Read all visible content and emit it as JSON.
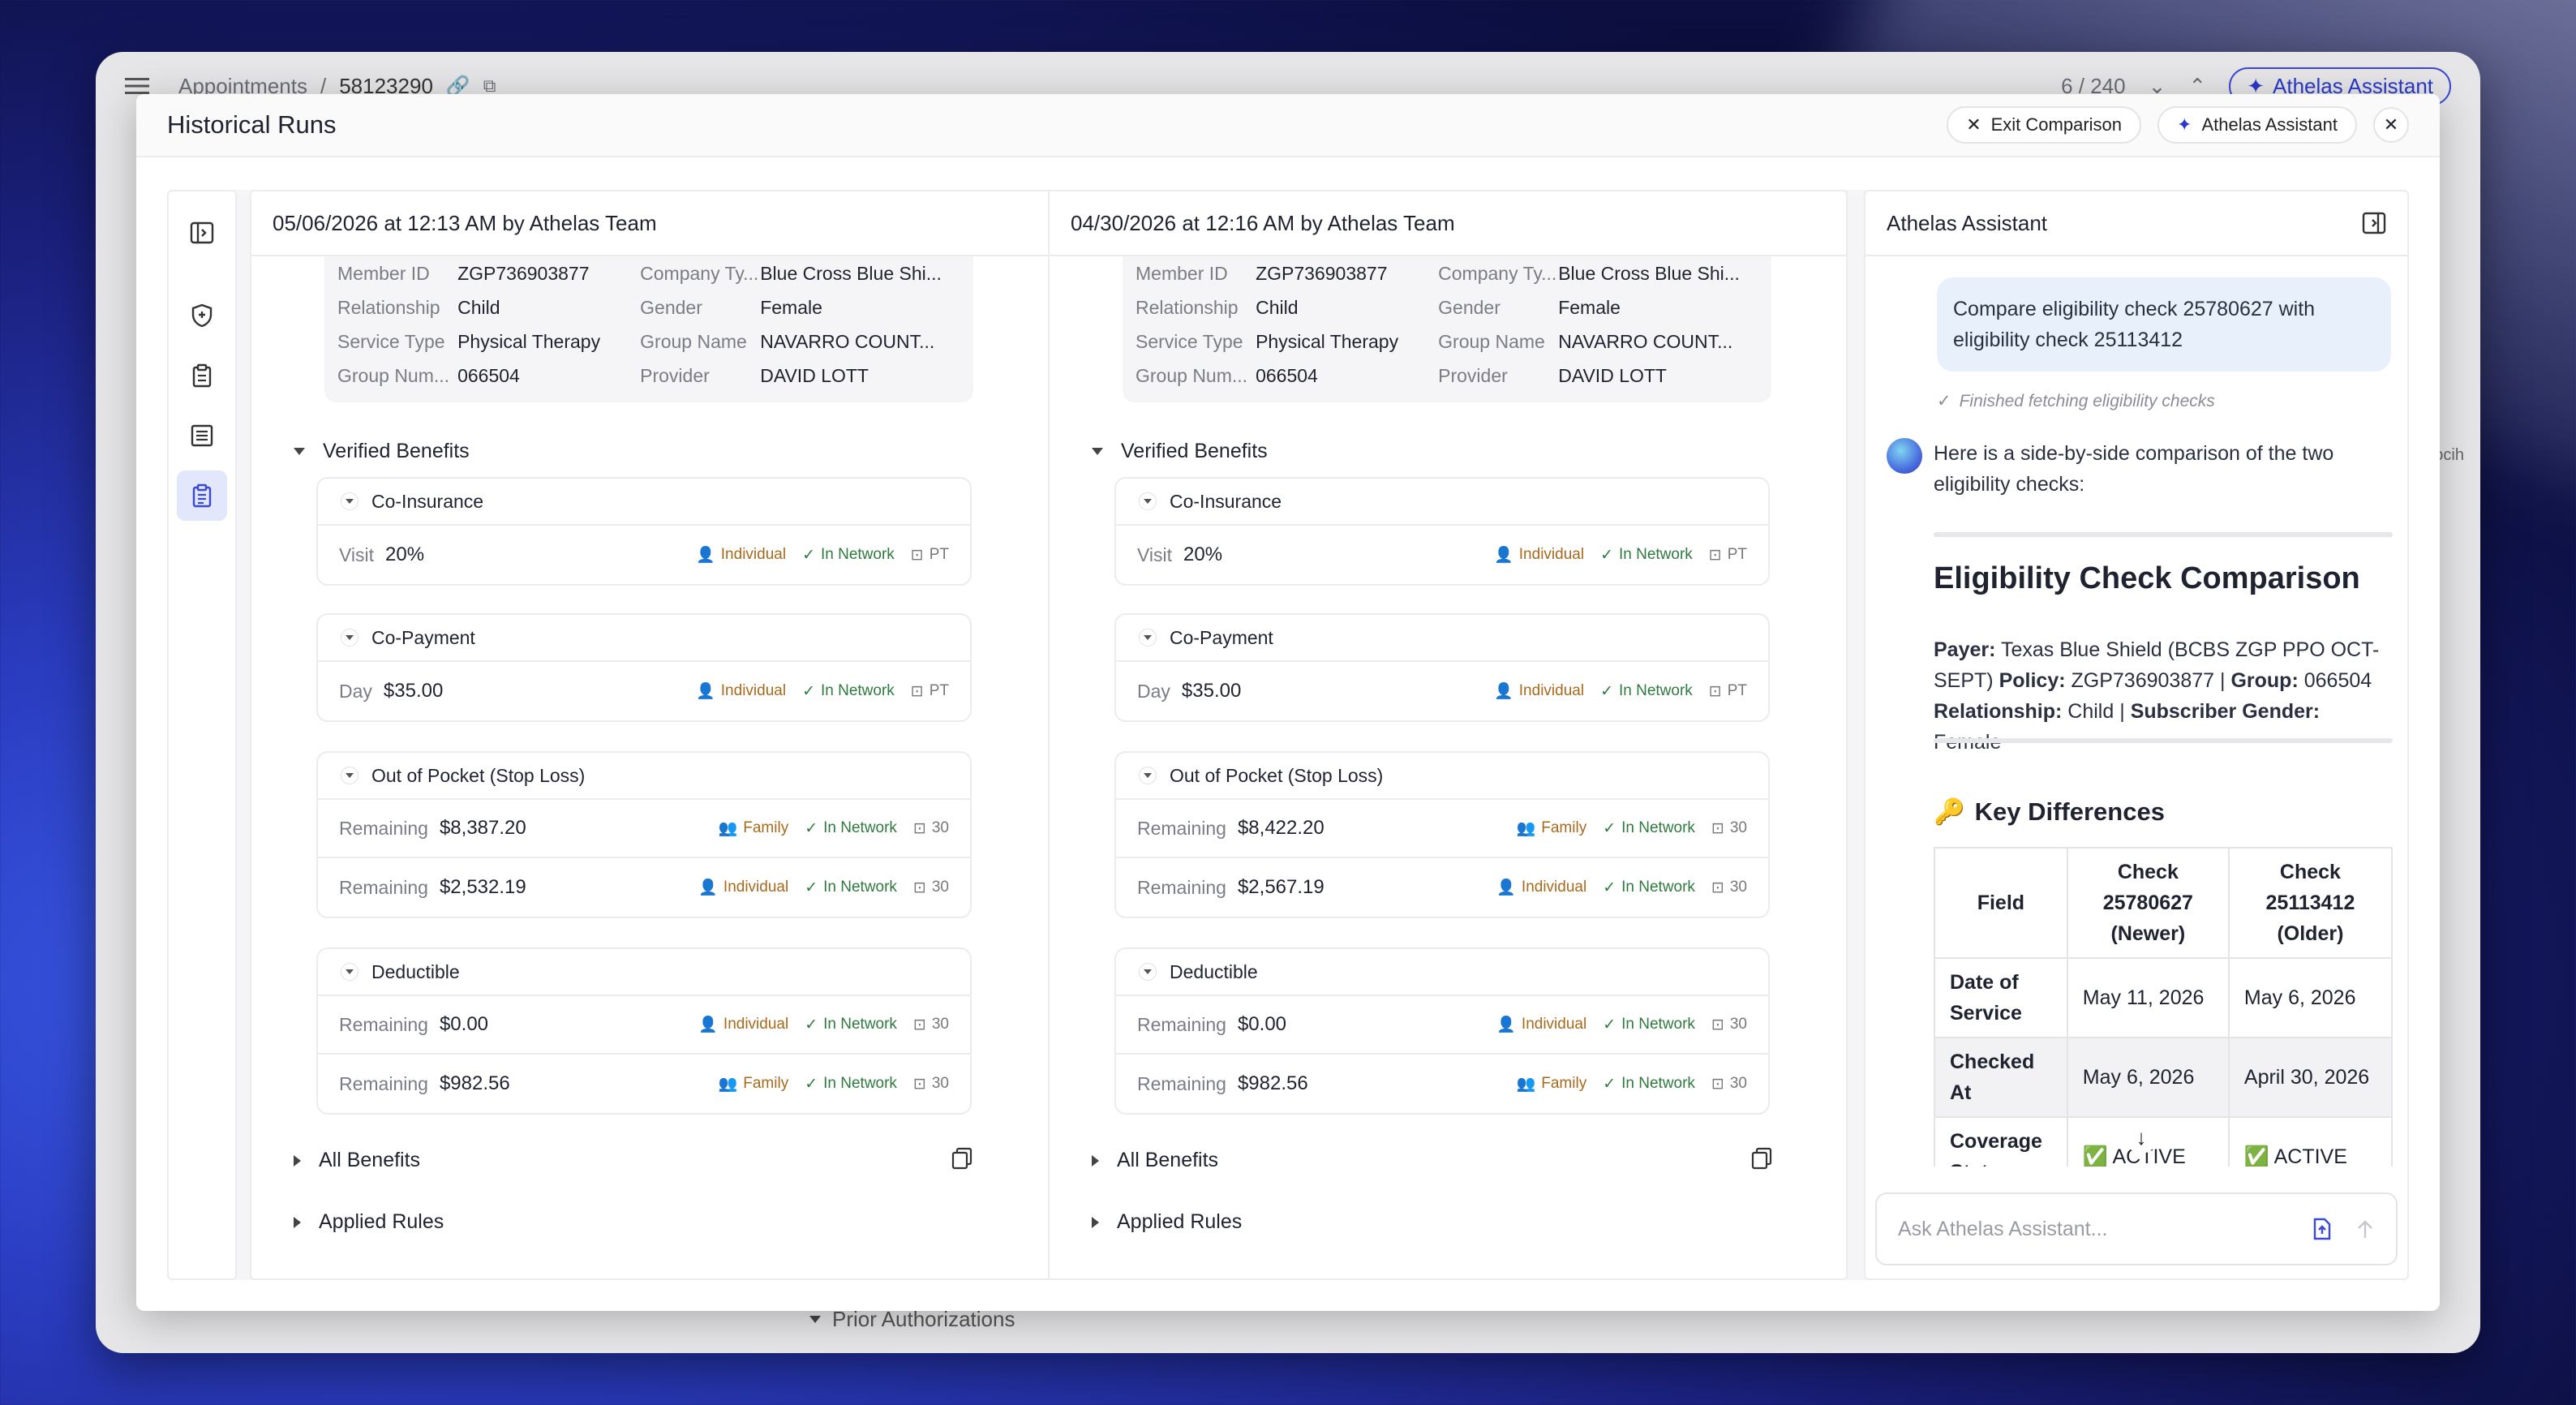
{
  "app": {
    "breadcrumb": [
      "Appointments",
      "58123290"
    ],
    "sep": "/",
    "pager": "6 / 240",
    "assistant_label": "Athelas Assistant",
    "behind_section": "Prior Authorizations",
    "behind_text": "ocih"
  },
  "modal": {
    "title": "Historical Runs",
    "exit_label": "Exit Comparison",
    "assistant_label": "Athelas Assistant"
  },
  "columns": [
    {
      "header": "05/06/2026 at 12:13 AM by Athelas Team",
      "info": [
        {
          "l1": "Member ID",
          "v1": "ZGP736903877",
          "l2": "Company Ty...",
          "v2": "Blue Cross Blue Shi..."
        },
        {
          "l1": "Relationship",
          "v1": "Child",
          "l2": "Gender",
          "v2": "Female"
        },
        {
          "l1": "Service Type",
          "v1": "Physical Therapy",
          "l2": "Group Name",
          "v2": "NAVARRO COUNT..."
        },
        {
          "l1": "Group Num...",
          "v1": "066504",
          "l2": "Provider",
          "v2": "DAVID LOTT"
        }
      ],
      "verified": "Verified Benefits",
      "coins": {
        "title": "Co-Insurance",
        "rows": [
          {
            "label": "Visit",
            "value": "20%",
            "who": "Individual",
            "net": "In Network",
            "code": "PT"
          }
        ]
      },
      "copay": {
        "title": "Co-Payment",
        "rows": [
          {
            "label": "Day",
            "value": "$35.00",
            "who": "Individual",
            "net": "In Network",
            "code": "PT"
          }
        ]
      },
      "oop": {
        "title": "Out of Pocket (Stop Loss)",
        "rows": [
          {
            "label": "Remaining",
            "value": "$8,387.20",
            "who": "Family",
            "net": "In Network",
            "code": "30"
          },
          {
            "label": "Remaining",
            "value": "$2,532.19",
            "who": "Individual",
            "net": "In Network",
            "code": "30"
          }
        ]
      },
      "ded": {
        "title": "Deductible",
        "rows": [
          {
            "label": "Remaining",
            "value": "$0.00",
            "who": "Individual",
            "net": "In Network",
            "code": "30"
          },
          {
            "label": "Remaining",
            "value": "$982.56",
            "who": "Family",
            "net": "In Network",
            "code": "30"
          }
        ]
      },
      "all_benefits": "All Benefits",
      "applied_rules": "Applied Rules"
    },
    {
      "header": "04/30/2026 at 12:16 AM by Athelas Team",
      "info": [
        {
          "l1": "Member ID",
          "v1": "ZGP736903877",
          "l2": "Company Ty...",
          "v2": "Blue Cross Blue Shi..."
        },
        {
          "l1": "Relationship",
          "v1": "Child",
          "l2": "Gender",
          "v2": "Female"
        },
        {
          "l1": "Service Type",
          "v1": "Physical Therapy",
          "l2": "Group Name",
          "v2": "NAVARRO COUNT..."
        },
        {
          "l1": "Group Num...",
          "v1": "066504",
          "l2": "Provider",
          "v2": "DAVID LOTT"
        }
      ],
      "verified": "Verified Benefits",
      "coins": {
        "title": "Co-Insurance",
        "rows": [
          {
            "label": "Visit",
            "value": "20%",
            "who": "Individual",
            "net": "In Network",
            "code": "PT"
          }
        ]
      },
      "copay": {
        "title": "Co-Payment",
        "rows": [
          {
            "label": "Day",
            "value": "$35.00",
            "who": "Individual",
            "net": "In Network",
            "code": "PT"
          }
        ]
      },
      "oop": {
        "title": "Out of Pocket (Stop Loss)",
        "rows": [
          {
            "label": "Remaining",
            "value": "$8,422.20",
            "who": "Family",
            "net": "In Network",
            "code": "30"
          },
          {
            "label": "Remaining",
            "value": "$2,567.19",
            "who": "Individual",
            "net": "In Network",
            "code": "30"
          }
        ]
      },
      "ded": {
        "title": "Deductible",
        "rows": [
          {
            "label": "Remaining",
            "value": "$0.00",
            "who": "Individual",
            "net": "In Network",
            "code": "30"
          },
          {
            "label": "Remaining",
            "value": "$982.56",
            "who": "Family",
            "net": "In Network",
            "code": "30"
          }
        ]
      },
      "all_benefits": "All Benefits",
      "applied_rules": "Applied Rules"
    }
  ],
  "assistant": {
    "title": "Athelas Assistant",
    "user_msg": "Compare eligibility check 25780627 with eligibility check 25113412",
    "status": "Finished fetching eligibility checks",
    "reply": "Here is a side-by-side comparison of the two eligibility checks:",
    "heading": "Eligibility Check Comparison",
    "payer_label": "Payer:",
    "payer": "Texas Blue Shield (BCBS ZGP PPO OCT-SEPT)",
    "policy_label": "Policy:",
    "policy": "ZGP736903877",
    "group_label": "Group:",
    "group": "066504",
    "rel_label": "Relationship:",
    "rel": "Child",
    "gender_label": "Subscriber Gender:",
    "gender": "Female",
    "pipe": "|",
    "kd_title": "Key Differences",
    "table": {
      "headers": [
        "Field",
        "Check 25780627 (Newer)",
        "Check 25113412 (Older)"
      ],
      "rows": [
        [
          "Date of Service",
          "May 11, 2026",
          "May 6, 2026"
        ],
        [
          "Checked At",
          "May 6, 2026",
          "April 30, 2026"
        ],
        [
          "Coverage Status",
          "✅ ACTIVE",
          "✅ ACTIVE"
        ]
      ]
    },
    "input_placeholder": "Ask Athelas Assistant..."
  },
  "colors": {
    "accent": "#3a49d6",
    "individual": "#a86a1a",
    "network": "#2f7a3e"
  }
}
